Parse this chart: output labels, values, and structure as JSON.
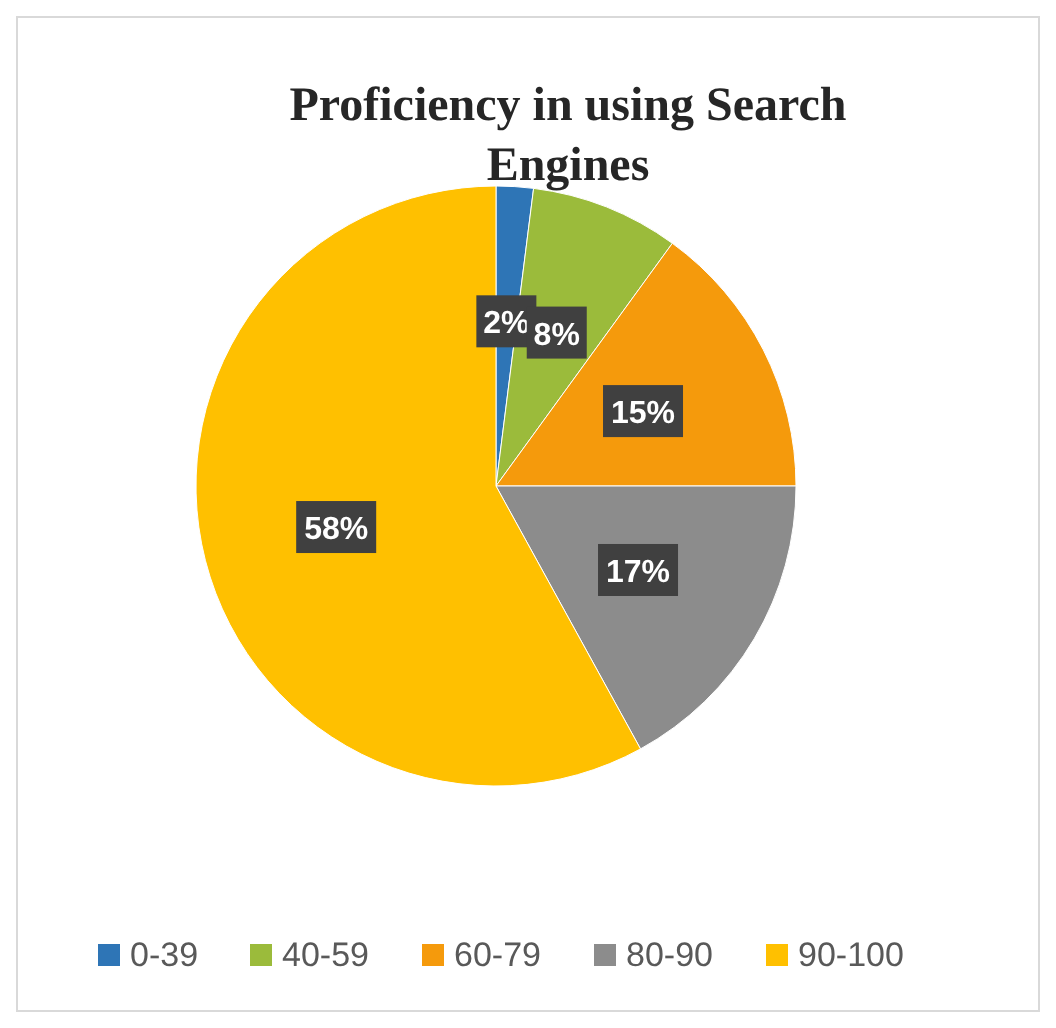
{
  "chart_data": {
    "type": "pie",
    "title": "Proficiency in using Search Engines",
    "categories": [
      "0-39",
      "40-59",
      "60-79",
      "80-90",
      "90-100"
    ],
    "values": [
      2,
      8,
      15,
      17,
      58
    ],
    "colors": [
      "#2e75b6",
      "#9bbb3b",
      "#f59a0c",
      "#8c8c8c",
      "#ffc000"
    ],
    "value_labels": [
      "2%",
      "8%",
      "15%",
      "17%",
      "58%"
    ],
    "legend": "bottom"
  }
}
